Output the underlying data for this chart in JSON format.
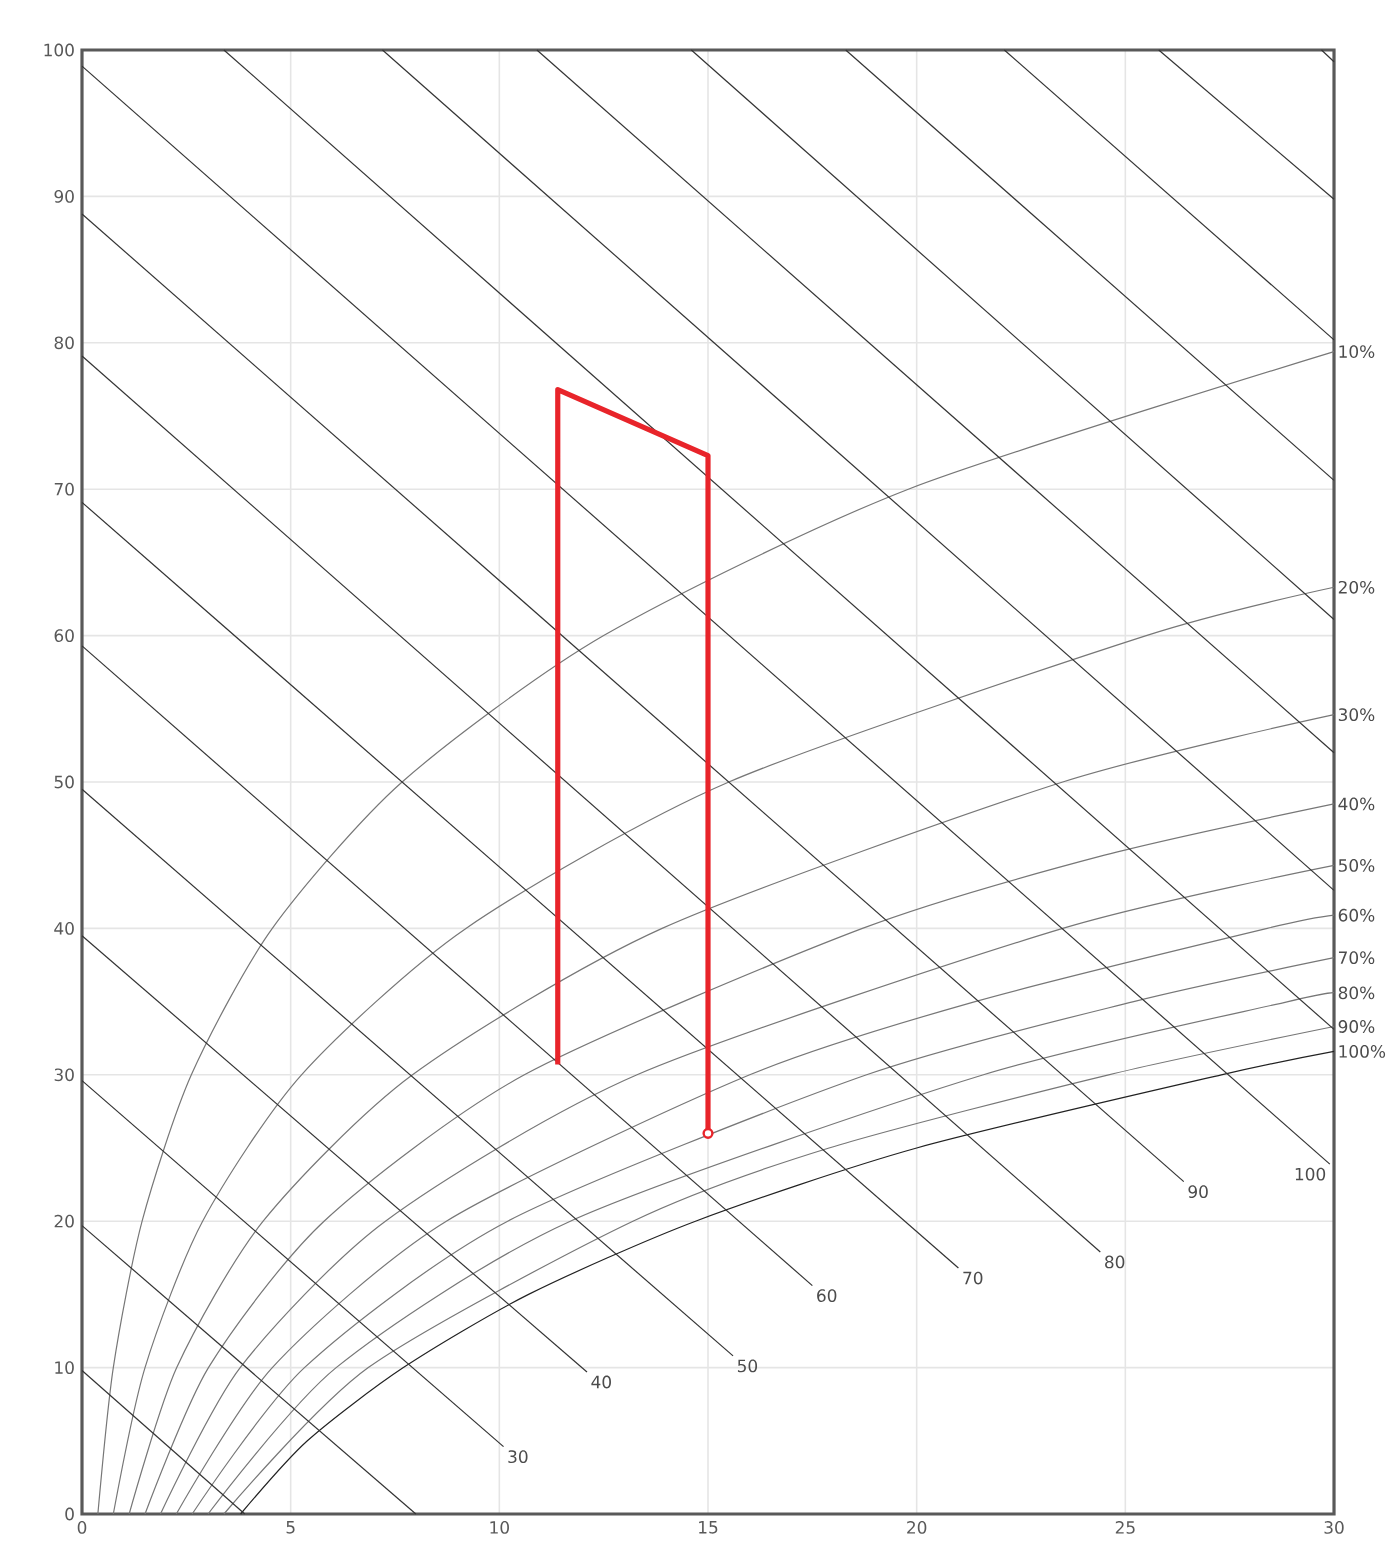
{
  "chart_data": {
    "type": "line",
    "xlim": [
      0,
      30
    ],
    "ylim": [
      0,
      100
    ],
    "xticks": [
      0,
      5,
      10,
      15,
      20,
      25,
      30
    ],
    "yticks": [
      0,
      10,
      20,
      30,
      40,
      50,
      60,
      70,
      80,
      90,
      100
    ],
    "grid": true,
    "series": [
      {
        "name": "10%",
        "color": "#777777",
        "x": [
          0.38,
          0.75,
          1.44,
          2.62,
          4.56,
          7.67,
          12.5,
          19.8,
          30
        ],
        "values": [
          0,
          10,
          20,
          30,
          40,
          50,
          60,
          70,
          79.4
        ]
      },
      {
        "name": "20%",
        "color": "#777777",
        "x": [
          0.75,
          1.51,
          2.89,
          5.26,
          9.2,
          15.5,
          25.5,
          30
        ],
        "values": [
          0,
          10,
          20,
          30,
          40,
          50,
          60,
          63.3
        ]
      },
      {
        "name": "30%",
        "color": "#777777",
        "x": [
          1.13,
          2.27,
          4.34,
          7.92,
          13.9,
          23.5,
          30
        ],
        "values": [
          0,
          10,
          20,
          30,
          40,
          50,
          54.6
        ]
      },
      {
        "name": "40%",
        "color": "#777777",
        "x": [
          1.51,
          3.03,
          5.8,
          10.6,
          18.7,
          24.5,
          30
        ],
        "values": [
          0,
          10,
          20,
          30,
          40,
          45,
          48.5
        ]
      },
      {
        "name": "50%",
        "color": "#777777",
        "x": [
          1.88,
          3.79,
          7.27,
          13.3,
          23.5,
          30
        ],
        "values": [
          0,
          10,
          20,
          30,
          40,
          44.3
        ]
      },
      {
        "name": "60%",
        "color": "#777777",
        "x": [
          2.26,
          4.56,
          8.73,
          16.0,
          21.4,
          28.4,
          30
        ],
        "values": [
          0,
          10,
          20,
          30,
          35,
          40,
          40.9
        ]
      },
      {
        "name": "70%",
        "color": "#777777",
        "x": [
          2.64,
          5.33,
          10.2,
          18.8,
          25.2,
          30
        ],
        "values": [
          0,
          10,
          20,
          30,
          35,
          38
        ]
      },
      {
        "name": "80%",
        "color": "#777777",
        "x": [
          3.02,
          6.09,
          11.7,
          21.6,
          28.9,
          30
        ],
        "values": [
          0,
          10,
          20,
          30,
          35,
          35.6
        ]
      },
      {
        "name": "90%",
        "color": "#777777",
        "x": [
          3.4,
          6.86,
          13.2,
          17.9,
          24.6,
          30
        ],
        "values": [
          0,
          10,
          20,
          25,
          30,
          33.3
        ]
      },
      {
        "name": "100%",
        "color": "#222222",
        "x": [
          3.8,
          5.4,
          7.7,
          10.7,
          14.7,
          20.0,
          27.3,
          30
        ],
        "values": [
          0,
          5,
          10,
          15,
          20,
          25,
          30,
          31.6
        ]
      },
      {
        "color": "#333333",
        "x": [
          0,
          3.9
        ],
        "values": [
          9.8,
          0
        ]
      },
      {
        "color": "#333333",
        "x": [
          0,
          8.0
        ],
        "values": [
          19.7,
          0
        ]
      },
      {
        "name": "30",
        "color": "#333333",
        "x": [
          0,
          10.1
        ],
        "values": [
          29.6,
          4.6
        ]
      },
      {
        "name": "40",
        "color": "#333333",
        "x": [
          0,
          12.1
        ],
        "values": [
          39.5,
          9.7
        ]
      },
      {
        "name": "50",
        "color": "#333333",
        "x": [
          0,
          15.6
        ],
        "values": [
          49.5,
          10.8
        ]
      },
      {
        "name": "60",
        "color": "#333333",
        "x": [
          0,
          17.5
        ],
        "values": [
          59.3,
          15.6
        ]
      },
      {
        "name": "70",
        "color": "#333333",
        "x": [
          0,
          21.0
        ],
        "values": [
          69.1,
          16.8
        ]
      },
      {
        "name": "80",
        "color": "#333333",
        "x": [
          0,
          24.4
        ],
        "values": [
          79.1,
          17.9
        ]
      },
      {
        "name": "90",
        "color": "#333333",
        "x": [
          0,
          26.4
        ],
        "values": [
          88.8,
          22.7
        ]
      },
      {
        "name": "100",
        "color": "#333333",
        "x": [
          0,
          29.9
        ],
        "values": [
          98.9,
          23.9
        ]
      },
      {
        "color": "#333333",
        "x": [
          3.4,
          30
        ],
        "values": [
          100,
          33.1
        ]
      },
      {
        "color": "#333333",
        "x": [
          7.2,
          30
        ],
        "values": [
          100,
          42.6
        ]
      },
      {
        "color": "#333333",
        "x": [
          10.9,
          30
        ],
        "values": [
          100,
          52.0
        ]
      },
      {
        "color": "#333333",
        "x": [
          14.6,
          30
        ],
        "values": [
          100,
          61.1
        ]
      },
      {
        "color": "#333333",
        "x": [
          18.3,
          30
        ],
        "values": [
          100,
          70.6
        ]
      },
      {
        "color": "#333333",
        "x": [
          22.1,
          30
        ],
        "values": [
          100,
          80.2
        ]
      },
      {
        "color": "#333333",
        "x": [
          25.8,
          30
        ],
        "values": [
          100,
          89.8
        ]
      },
      {
        "color": "#333333",
        "x": [
          29.7,
          30
        ],
        "values": [
          100,
          99.2
        ]
      },
      {
        "color": "#e8242a",
        "x": [
          11.4,
          11.4,
          15,
          15
        ],
        "values": [
          30.7,
          76.8,
          72.3,
          26.0
        ]
      },
      {
        "type": "scatter",
        "color": "#e8242a",
        "marker": "circle",
        "x": [
          15
        ],
        "values": [
          26.0
        ]
      }
    ]
  }
}
